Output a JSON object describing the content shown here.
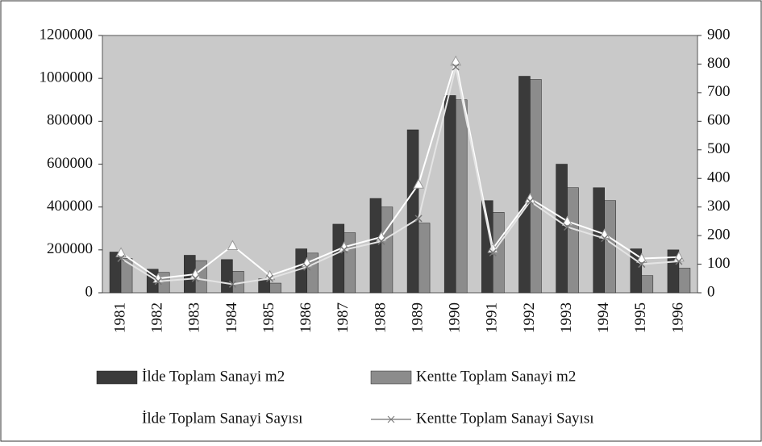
{
  "chart_data": {
    "type": "bar-line",
    "categories": [
      "1981",
      "1982",
      "1983",
      "1984",
      "1985",
      "1986",
      "1987",
      "1988",
      "1989",
      "1990",
      "1991",
      "1992",
      "1993",
      "1994",
      "1995",
      "1996"
    ],
    "series": [
      {
        "name": "İlde Toplam Sanayi m2",
        "type": "bar",
        "color": "#3a3a3a",
        "values": [
          190000,
          110000,
          175000,
          155000,
          65000,
          205000,
          320000,
          440000,
          760000,
          920000,
          430000,
          1010000,
          600000,
          490000,
          205000,
          200000
        ]
      },
      {
        "name": "Kentte Toplam Sanayi m2",
        "type": "bar",
        "color": "#8c8c8c",
        "values": [
          160000,
          95000,
          150000,
          100000,
          45000,
          185000,
          280000,
          400000,
          325000,
          900000,
          375000,
          995000,
          490000,
          430000,
          80000,
          115000
        ]
      },
      {
        "name": "İlde Toplam Sanayi Sayısı",
        "type": "line",
        "axis": "y2",
        "color": "#ffffff",
        "values": [
          140,
          50,
          65,
          165,
          60,
          105,
          160,
          195,
          380,
          810,
          155,
          330,
          250,
          205,
          120,
          125
        ]
      },
      {
        "name": "Kentte Toplam Sanayi Sayısı",
        "type": "line",
        "axis": "y2",
        "color": "#e4e4e4",
        "values": [
          120,
          40,
          50,
          30,
          50,
          90,
          150,
          180,
          260,
          790,
          140,
          320,
          230,
          190,
          100,
          110
        ]
      }
    ],
    "ylim": [
      0,
      1200000
    ],
    "yticks": [
      0,
      200000,
      400000,
      600000,
      800000,
      1000000,
      1200000
    ],
    "y2lim": [
      0,
      900
    ],
    "y2ticks": [
      0,
      100,
      200,
      300,
      400,
      500,
      600,
      700,
      800,
      900
    ]
  }
}
